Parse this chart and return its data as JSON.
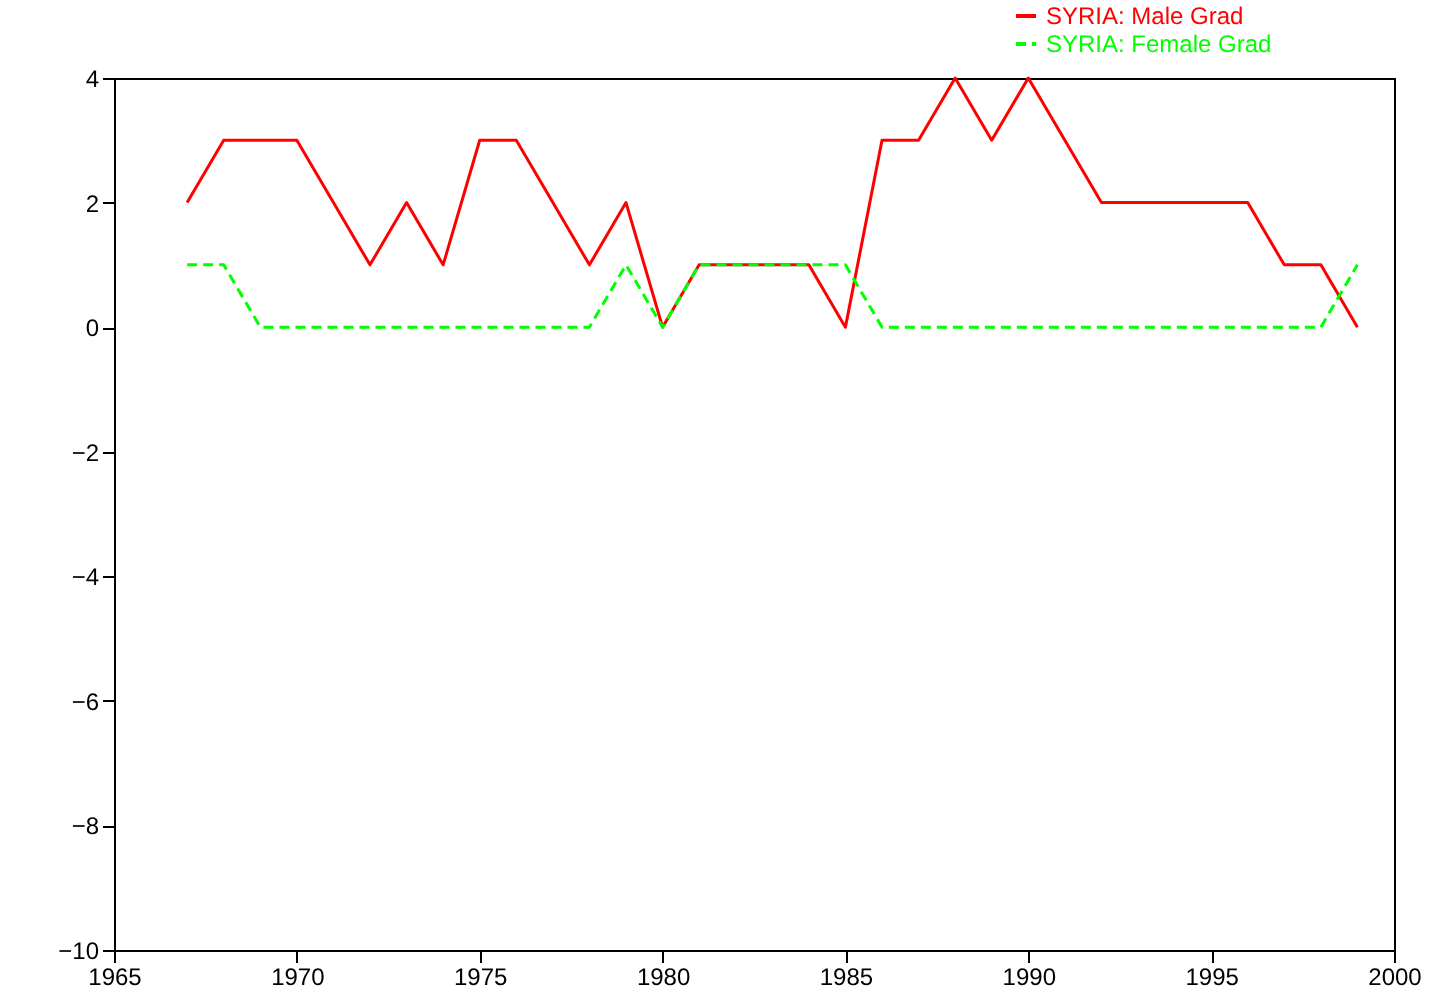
{
  "chart_data": {
    "type": "line",
    "x": [
      1967,
      1968,
      1969,
      1970,
      1971,
      1972,
      1973,
      1974,
      1975,
      1976,
      1977,
      1978,
      1979,
      1980,
      1981,
      1982,
      1983,
      1984,
      1985,
      1986,
      1987,
      1988,
      1989,
      1990,
      1991,
      1992,
      1993,
      1994,
      1995,
      1996,
      1997,
      1998,
      1999
    ],
    "series": [
      {
        "name": "SYRIA: Male Grad",
        "color": "#ff0000",
        "line_style": "solid",
        "values": [
          2,
          3,
          3,
          3,
          2,
          1,
          2,
          1,
          3,
          3,
          2,
          1,
          2,
          0,
          1,
          1,
          1,
          1,
          0,
          3,
          3,
          4,
          3,
          4,
          3,
          2,
          2,
          2,
          2,
          2,
          1,
          1,
          0
        ]
      },
      {
        "name": "SYRIA: Female Grad",
        "color": "#00ff00",
        "line_style": "dashed",
        "values": [
          1,
          1,
          0,
          0,
          0,
          0,
          0,
          0,
          0,
          0,
          0,
          0,
          1,
          0,
          1,
          1,
          1,
          1,
          1,
          0,
          0,
          0,
          0,
          0,
          0,
          0,
          0,
          0,
          0,
          0,
          0,
          0,
          1
        ]
      }
    ],
    "xlim": [
      1965,
      2000
    ],
    "xticks": [
      1965,
      1970,
      1975,
      1980,
      1985,
      1990,
      1995,
      2000
    ],
    "ylim": [
      -10,
      4
    ],
    "yticks": [
      -10,
      -8,
      -6,
      -4,
      -2,
      0,
      2,
      4
    ],
    "grid": false,
    "legend": "top right"
  }
}
